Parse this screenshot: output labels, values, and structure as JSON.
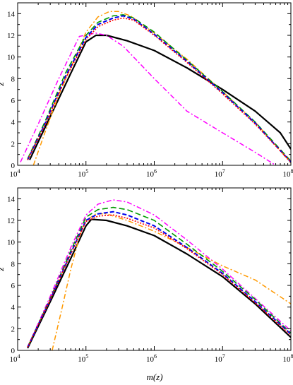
{
  "figure": {
    "xlabel": "m(z)",
    "note": "Two stacked panels sharing a logarithmic x axis (10^4 to 10^8) and a linear y axis (0 to 15)."
  },
  "chart_data": [
    {
      "type": "line",
      "panel": "top",
      "title": "",
      "xlabel": "",
      "ylabel": "z",
      "xscale": "log",
      "xlim": [
        10000,
        100000000
      ],
      "ylim": [
        0,
        15
      ],
      "xticks": [
        {
          "value": 10000,
          "base": "10",
          "exp": "4"
        },
        {
          "value": 100000,
          "base": "10",
          "exp": "5"
        },
        {
          "value": 1000000,
          "base": "10",
          "exp": "6"
        },
        {
          "value": 10000000,
          "base": "10",
          "exp": "7"
        },
        {
          "value": 100000000,
          "base": "10",
          "exp": "8"
        }
      ],
      "yticks": [
        "0",
        "2",
        "4",
        "6",
        "8",
        "10",
        "12",
        "14"
      ],
      "series": [
        {
          "color": "#000000",
          "dash": "",
          "width": 2.2,
          "x": [
            15000,
            30000,
            60000,
            100000,
            140000,
            200000,
            400000,
            1000000,
            3000000,
            10000000,
            30000000,
            70000000,
            100000000
          ],
          "y": [
            0.5,
            4.5,
            8.5,
            11.4,
            12.0,
            12.0,
            11.5,
            10.6,
            9.0,
            7.0,
            5.0,
            3.0,
            1.5
          ]
        },
        {
          "color": "#ff00ff",
          "dash": "7,3,2,3",
          "width": 1.5,
          "x": [
            11000,
            20000,
            40000,
            80000,
            140000,
            200000,
            350000,
            1000000,
            3000000,
            10000000,
            30000000,
            60000000
          ],
          "y": [
            0.3,
            3.8,
            8.0,
            11.9,
            12.2,
            12.0,
            11.0,
            8.0,
            5.0,
            3.0,
            1.2,
            0.0
          ]
        },
        {
          "color": "#ff9900",
          "dash": "7,3,2,3",
          "width": 1.5,
          "x": [
            17000,
            25000,
            40000,
            70000,
            100000,
            150000,
            220000,
            300000,
            450000,
            1000000,
            3000000,
            10000000,
            30000000,
            100000000
          ],
          "y": [
            0.0,
            3.0,
            6.5,
            10.0,
            12.3,
            13.7,
            14.2,
            14.2,
            13.8,
            12.2,
            9.8,
            6.8,
            4.0,
            0.2
          ]
        },
        {
          "color": "#009900",
          "dash": "8,4",
          "width": 1.6,
          "x": [
            14000,
            25000,
            50000,
            100000,
            150000,
            250000,
            350000,
            500000,
            1000000,
            3000000,
            10000000,
            30000000,
            100000000
          ],
          "y": [
            0.6,
            4.0,
            8.5,
            12.0,
            13.2,
            13.8,
            13.9,
            13.6,
            12.3,
            9.7,
            6.8,
            4.0,
            0.4
          ]
        },
        {
          "color": "#0000ee",
          "dash": "6,3",
          "width": 2.0,
          "x": [
            14000,
            25000,
            50000,
            100000,
            150000,
            250000,
            350000,
            500000,
            1000000,
            3000000,
            10000000,
            30000000,
            100000000
          ],
          "y": [
            0.5,
            3.8,
            8.2,
            11.8,
            13.0,
            13.6,
            13.8,
            13.5,
            12.1,
            9.6,
            6.7,
            3.9,
            0.3
          ]
        },
        {
          "color": "#ff0000",
          "dash": "2,2",
          "width": 1.6,
          "x": [
            14000,
            25000,
            50000,
            100000,
            150000,
            250000,
            350000,
            500000,
            1000000,
            3000000,
            10000000,
            30000000,
            100000000
          ],
          "y": [
            0.5,
            3.7,
            8.0,
            11.6,
            12.8,
            13.4,
            13.6,
            13.4,
            12.0,
            9.5,
            6.6,
            3.8,
            0.3
          ]
        }
      ]
    },
    {
      "type": "line",
      "panel": "bottom",
      "title": "",
      "xlabel": "m(z)",
      "ylabel": "z",
      "xscale": "log",
      "xlim": [
        10000,
        100000000
      ],
      "ylim": [
        0,
        15
      ],
      "xticks": [
        {
          "value": 10000,
          "base": "10",
          "exp": "4"
        },
        {
          "value": 100000,
          "base": "10",
          "exp": "5"
        },
        {
          "value": 1000000,
          "base": "10",
          "exp": "6"
        },
        {
          "value": 10000000,
          "base": "10",
          "exp": "7"
        },
        {
          "value": 100000000,
          "base": "10",
          "exp": "8"
        }
      ],
      "yticks": [
        "0",
        "2",
        "4",
        "6",
        "8",
        "10",
        "12",
        "14"
      ],
      "series": [
        {
          "color": "#000000",
          "dash": "",
          "width": 2.2,
          "x": [
            14000,
            30000,
            60000,
            100000,
            120000,
            200000,
            400000,
            1000000,
            3000000,
            10000000,
            30000000,
            100000000
          ],
          "y": [
            0.2,
            4.5,
            8.5,
            11.5,
            12.1,
            12.0,
            11.5,
            10.6,
            8.9,
            6.8,
            4.3,
            1.2
          ]
        },
        {
          "color": "#ff00ff",
          "dash": "7,3,2,3",
          "width": 1.5,
          "x": [
            14000,
            30000,
            60000,
            100000,
            150000,
            250000,
            400000,
            1000000,
            3000000,
            10000000,
            30000000,
            100000000
          ],
          "y": [
            0.3,
            5.0,
            9.5,
            12.5,
            13.5,
            13.9,
            13.7,
            12.5,
            10.2,
            7.5,
            4.8,
            1.8
          ]
        },
        {
          "color": "#ff9900",
          "dash": "7,3,2,3",
          "width": 1.5,
          "x": [
            32000,
            45000,
            60000,
            80000,
            100000,
            140000,
            200000,
            400000,
            1000000,
            3000000,
            10000000,
            30000000,
            100000000
          ],
          "y": [
            0.0,
            4.0,
            7.5,
            10.5,
            12.0,
            12.6,
            12.6,
            12.0,
            11.0,
            9.5,
            7.8,
            6.5,
            4.3
          ]
        },
        {
          "color": "#009900",
          "dash": "8,4",
          "width": 1.6,
          "x": [
            14000,
            30000,
            60000,
            100000,
            150000,
            250000,
            400000,
            1000000,
            3000000,
            10000000,
            30000000,
            100000000
          ],
          "y": [
            0.3,
            4.8,
            9.2,
            12.3,
            13.0,
            13.2,
            13.0,
            12.0,
            9.8,
            7.3,
            4.7,
            1.6
          ]
        },
        {
          "color": "#0000ee",
          "dash": "6,3",
          "width": 2.0,
          "x": [
            14000,
            30000,
            60000,
            100000,
            150000,
            250000,
            400000,
            1000000,
            3000000,
            10000000,
            30000000,
            100000000
          ],
          "y": [
            0.3,
            4.7,
            9.0,
            12.0,
            12.6,
            12.8,
            12.5,
            11.5,
            9.5,
            7.1,
            4.5,
            1.5
          ]
        },
        {
          "color": "#ff0000",
          "dash": "2,2",
          "width": 1.6,
          "x": [
            14000,
            30000,
            60000,
            100000,
            150000,
            250000,
            400000,
            1000000,
            3000000,
            10000000,
            30000000,
            100000000
          ],
          "y": [
            0.3,
            4.7,
            8.9,
            11.9,
            12.4,
            12.5,
            12.2,
            11.3,
            9.4,
            7.0,
            4.4,
            1.4
          ]
        }
      ]
    }
  ]
}
